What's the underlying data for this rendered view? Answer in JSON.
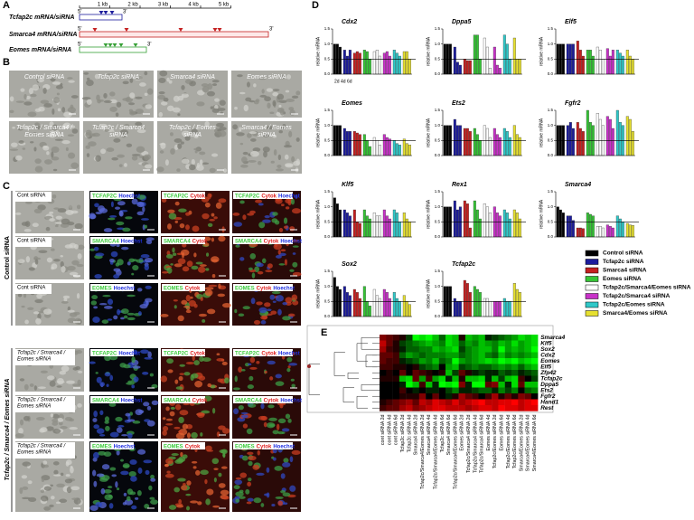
{
  "panel_a": {
    "label": "A",
    "scale": [
      "1 kb",
      "2 kb",
      "3 kb",
      "4 kb",
      "5 kb"
    ],
    "five_prime": "5'",
    "three_prime": "3'",
    "rows": [
      "Tcfap2c mRNA/siRNA",
      "Smarca4 mRNA/siRNA",
      "Eomes mRNA/siRNA"
    ]
  },
  "panel_b": {
    "label": "B",
    "images": [
      [
        "Control siRNA"
      ],
      [
        "Tcfap2c siRNA"
      ],
      [
        "Smarca4 siRNA"
      ],
      [
        "Eomes siRNA"
      ],
      [
        "Tcfap2c / Smarca4 /",
        "Eomes siRNA"
      ],
      [
        "Tcfap2c / Smarca4",
        "siRNA"
      ],
      [
        "Tcfap2c / Eomes",
        "siRNA"
      ],
      [
        "Smarca4 / Eomes",
        "siRNA"
      ]
    ]
  },
  "panel_c": {
    "label": "C",
    "groups": [
      "Control siRNA",
      "Tcfap2c / Smarca4 / Eomes  siRNA"
    ],
    "hoechst": "Hoechst",
    "cytok": "Cytok",
    "rows": [
      {
        "phase": [
          "Cont siRNA"
        ],
        "stain": "TCFAP2C"
      },
      {
        "phase": [
          "Cont siRNA"
        ],
        "stain": "SMARCA4"
      },
      {
        "phase": [
          "Cont siRNA"
        ],
        "stain": "EOMES"
      },
      {
        "phase": [
          "Tcfap2c / Smarca4 /",
          "Eomes siRNA"
        ],
        "stain": "TCFAP2C"
      },
      {
        "phase": [
          "Tcfap2c / Smarca4 /",
          "Eomes siRNA"
        ],
        "stain": "SMARCA4"
      },
      {
        "phase": [
          "Tcfap2c / Smarca4 /",
          "Eomes siRNA"
        ],
        "stain": "EOMES"
      }
    ]
  },
  "panel_d": {
    "label": "D",
    "type": "bar",
    "y_label": "relative mRNA",
    "timepoints": [
      "2d",
      "4d",
      "6d"
    ],
    "ylim": [
      0,
      1.5
    ],
    "yticks": [
      {
        "value": 0,
        "label": "0.0"
      },
      0.5,
      {
        "value": 1,
        "label": "1.0"
      },
      1.5
    ],
    "ref_line": 0.5,
    "series": [
      {
        "name": "Control siRNA",
        "color": "#000000"
      },
      {
        "name": "Tcfap2c siRNA",
        "color": "#1c1c9c"
      },
      {
        "name": "Smarca4 siRNA",
        "color": "#c42020"
      },
      {
        "name": "Eomes siRNA",
        "color": "#36c436"
      },
      {
        "name": "Tcfap2c/Smarca4/Eomes siRNA",
        "color": "#ffffff"
      },
      {
        "name": "Tcfap2c/Smarca4 siRNA",
        "color": "#c832c8"
      },
      {
        "name": "Tcfap2c/Eomes siRNA",
        "color": "#30c8c8"
      },
      {
        "name": "Smarca4/Eomes siRNA",
        "color": "#e6e030"
      }
    ],
    "charts": [
      {
        "title": "Cdx2",
        "values": [
          [
            1,
            1,
            0.9
          ],
          [
            0.8,
            0.6,
            0.8
          ],
          [
            0.7,
            0.75,
            0.7
          ],
          [
            0.8,
            0.75,
            0.5
          ],
          [
            0.75,
            0.8,
            0.6
          ],
          [
            0.7,
            0.75,
            0.6
          ],
          [
            0.8,
            0.7,
            0.6
          ],
          [
            0.75,
            0.75,
            0.5
          ]
        ]
      },
      {
        "title": "Dppa5",
        "values": [
          [
            1,
            1,
            1
          ],
          [
            0.9,
            0.4,
            0.3
          ],
          [
            0.5,
            0.45,
            0.45
          ],
          [
            1.3,
            1.3,
            0.5
          ],
          [
            1.2,
            0.9,
            0.2
          ],
          [
            0.9,
            0.3,
            0.2
          ],
          [
            1.3,
            1.0,
            0.5
          ],
          [
            1.2,
            0.5,
            0.5
          ]
        ]
      },
      {
        "title": "Elf5",
        "values": [
          [
            1,
            1,
            1
          ],
          [
            1,
            1,
            1
          ],
          [
            1.1,
            0.8,
            0.6
          ],
          [
            0.8,
            0.8,
            0.6
          ],
          [
            0.9,
            0.8,
            0.5
          ],
          [
            0.85,
            0.6,
            0.8
          ],
          [
            0.8,
            0.7,
            0.6
          ],
          [
            0.8,
            0.6,
            0.5
          ]
        ]
      },
      {
        "title": "Eomes",
        "values": [
          [
            1,
            1,
            1
          ],
          [
            0.9,
            0.8,
            0.8
          ],
          [
            0.8,
            0.75,
            0.7
          ],
          [
            0.7,
            0.5,
            0.3
          ],
          [
            0.6,
            0.5,
            0.35
          ],
          [
            0.7,
            0.6,
            0.55
          ],
          [
            0.5,
            0.4,
            0.35
          ],
          [
            0.55,
            0.4,
            0.35
          ]
        ]
      },
      {
        "title": "Ets2",
        "values": [
          [
            1,
            1,
            1
          ],
          [
            1.2,
            1,
            1
          ],
          [
            0.9,
            0.9,
            0.8
          ],
          [
            0.9,
            0.7,
            0.5
          ],
          [
            1,
            0.9,
            0.6
          ],
          [
            0.9,
            0.7,
            0.6
          ],
          [
            0.9,
            0.8,
            0.6
          ],
          [
            1,
            0.7,
            0.6
          ]
        ]
      },
      {
        "title": "Fgfr2",
        "values": [
          [
            1,
            1,
            1
          ],
          [
            1,
            1.1,
            0.9
          ],
          [
            1.1,
            0.9,
            0.8
          ],
          [
            1.5,
            1.1,
            1.0
          ],
          [
            1.4,
            1.2,
            1
          ],
          [
            1.3,
            1.2,
            0.9
          ],
          [
            1.5,
            1.1,
            1
          ],
          [
            1.3,
            1.2,
            0.8
          ]
        ]
      },
      {
        "title": "Klf5",
        "values": [
          [
            1.3,
            1.1,
            0.9
          ],
          [
            0.9,
            0.8,
            0.7
          ],
          [
            0.9,
            0.5,
            0.45
          ],
          [
            0.9,
            0.7,
            0.6
          ],
          [
            0.8,
            0.7,
            0.7
          ],
          [
            0.9,
            0.7,
            0.6
          ],
          [
            0.9,
            0.8,
            0.5
          ],
          [
            0.8,
            0.6,
            0.5
          ]
        ]
      },
      {
        "title": "Rex1",
        "values": [
          [
            1,
            1,
            1
          ],
          [
            1.2,
            0.9,
            1.0
          ],
          [
            1.2,
            1.1,
            0.3
          ],
          [
            1.2,
            0.9,
            0.6
          ],
          [
            1.1,
            1.0,
            0.8
          ],
          [
            1.0,
            0.8,
            0.7
          ],
          [
            0.9,
            0.8,
            0.6
          ],
          [
            0.9,
            0.8,
            0.6
          ]
        ]
      },
      {
        "title": "Smarca4",
        "values": [
          [
            1,
            0.9,
            0.8
          ],
          [
            0.7,
            0.7,
            0.55
          ],
          [
            0.3,
            0.3,
            0.28
          ],
          [
            0.8,
            0.75,
            0.7
          ],
          [
            0.35,
            0.35,
            0.3
          ],
          [
            0.4,
            0.35,
            0.3
          ],
          [
            0.7,
            0.6,
            0.5
          ],
          [
            0.45,
            0.4,
            0.38
          ]
        ]
      },
      {
        "title": "Sox2",
        "values": [
          [
            1.3,
            1,
            0.9
          ],
          [
            1,
            0.8,
            0.7
          ],
          [
            0.9,
            0.8,
            0.6
          ],
          [
            1,
            0.5,
            0.35
          ],
          [
            0.9,
            0.7,
            0.6
          ],
          [
            0.9,
            0.8,
            0.6
          ],
          [
            0.8,
            0.6,
            0.5
          ],
          [
            0.7,
            0.5,
            0.4
          ]
        ]
      },
      {
        "title": "Tcfap2c",
        "values": [
          [
            1,
            1,
            1
          ],
          [
            0.6,
            0.5,
            0.5
          ],
          [
            1.2,
            1.1,
            0.8
          ],
          [
            1,
            0.9,
            0.8
          ],
          [
            0.6,
            0.6,
            0.5
          ],
          [
            0.5,
            0.5,
            0.5
          ],
          [
            0.6,
            0.5,
            0.5
          ],
          [
            1.1,
            0.9,
            0.8
          ]
        ]
      }
    ]
  },
  "panel_e": {
    "label": "E",
    "type": "heatmap",
    "low_color": "#00ff00",
    "high_color": "#ff0000",
    "columns": [
      "cont siRNA 2d",
      "cont siRNA 4d",
      "cont siRNA 6d",
      "Tcfap2c siRNA 2d",
      "Tcfap2c siRNA 4d",
      "Smarca4 siRNA 2d",
      "Tcfap2c/Smarca4/Eomes siRNA 2d",
      "Smarca4 siRNA 4d",
      "Tcfap2c/Smarca4/Eomes siRNA 4d",
      "Tcfap2c siRNA 6d",
      "Smarca4 siRNA 6d",
      "Tcfap2c/Smarca4/Eomes siRNA 6d",
      "Eomes siRNA 2d",
      "Tcfap2c/Smarca4 siRNA 2d",
      "Tcfap2c/Smarca4 siRNA 4d",
      "Tcfap2c/Smarca4 siRNA 6d",
      "Eomes siRNA 4d",
      "Tcfap2c/Eomes siRNA 2d",
      "Eomes siRNA 6d",
      "Tcfap2c/Eomes siRNA 4d",
      "Tcfap2c/Eomes siRNA 6d",
      "Smarca4/Eomes siRNA 2d",
      "Smarca4/Eomes siRNA 4d",
      "Smarca4/Eomes siRNA 6d"
    ],
    "rows": [
      {
        "gene": "Smarca4",
        "values": [
          0.4,
          0.3,
          0.2,
          0.1,
          -0.2,
          -0.8,
          -0.7,
          -0.8,
          -0.6,
          -0.3,
          -0.7,
          -0.6,
          0.1,
          -0.6,
          -0.5,
          -0.6,
          -0.1,
          -0.2,
          -0.3,
          -0.4,
          -0.5,
          -0.7,
          -0.6,
          -0.7
        ]
      },
      {
        "gene": "Klf5",
        "values": [
          0.6,
          0.3,
          0.1,
          -0.2,
          -0.3,
          -0.4,
          -0.5,
          -0.6,
          -0.5,
          -0.4,
          -0.7,
          -0.6,
          -0.3,
          -0.5,
          -0.4,
          -0.6,
          -0.5,
          -0.4,
          -0.6,
          -0.5,
          -0.7,
          -0.5,
          -0.6,
          -0.7
        ]
      },
      {
        "gene": "Sox2",
        "values": [
          0.5,
          0.2,
          0.1,
          -0.1,
          -0.3,
          -0.3,
          -0.4,
          -0.4,
          -0.6,
          -0.5,
          -0.6,
          -0.7,
          -0.2,
          -0.4,
          -0.5,
          -0.6,
          -0.6,
          -0.4,
          -0.8,
          -0.5,
          -0.6,
          -0.5,
          -0.6,
          -0.8
        ]
      },
      {
        "gene": "Cdx2",
        "values": [
          0.3,
          0.3,
          0.2,
          -0.3,
          -0.5,
          -0.4,
          -0.3,
          -0.4,
          -0.4,
          -0.4,
          -0.5,
          -0.5,
          -0.3,
          -0.4,
          -0.5,
          -0.6,
          -0.4,
          -0.3,
          -0.6,
          -0.4,
          -0.5,
          -0.4,
          -0.5,
          -0.6
        ]
      },
      {
        "gene": "Eomes",
        "values": [
          0.3,
          0.2,
          0.2,
          -0.1,
          -0.2,
          -0.3,
          -0.5,
          -0.4,
          -0.6,
          -0.3,
          -0.4,
          -0.8,
          -0.5,
          -0.4,
          -0.5,
          -0.6,
          -0.7,
          -0.6,
          -0.8,
          -0.7,
          -0.8,
          -0.6,
          -0.7,
          -0.8
        ]
      },
      {
        "gene": "Elf5",
        "values": [
          0.2,
          0.2,
          0.1,
          0.1,
          0.0,
          0.1,
          -0.2,
          -0.3,
          -0.4,
          0.0,
          -0.5,
          -0.6,
          -0.2,
          -0.3,
          -0.4,
          -0.3,
          -0.3,
          -0.4,
          -0.5,
          -0.4,
          -0.5,
          -0.3,
          -0.5,
          -0.6
        ]
      },
      {
        "gene": "Zfp42",
        "values": [
          0.0,
          0.1,
          0.0,
          0.3,
          0.0,
          0.3,
          0.2,
          0.1,
          0.0,
          0.1,
          -0.6,
          -0.2,
          0.3,
          0.1,
          -0.1,
          -0.2,
          -0.1,
          -0.1,
          -0.3,
          -0.2,
          -0.3,
          -0.1,
          -0.2,
          -0.3
        ]
      },
      {
        "gene": "Tcfap2c",
        "values": [
          0.1,
          0.1,
          0.1,
          -0.6,
          -0.7,
          0.3,
          -0.5,
          0.2,
          -0.5,
          -0.7,
          -0.1,
          -0.6,
          0.1,
          -0.6,
          -0.6,
          -0.7,
          -0.1,
          -0.6,
          -0.2,
          -0.6,
          -0.7,
          0.2,
          0.0,
          -0.2
        ]
      },
      {
        "gene": "Dppa5",
        "values": [
          0.0,
          0.0,
          0.0,
          -0.1,
          -0.8,
          -0.6,
          0.2,
          -0.6,
          -0.1,
          -0.8,
          -0.7,
          -0.9,
          0.4,
          -0.1,
          -0.8,
          -0.9,
          0.3,
          0.4,
          -0.6,
          -0.1,
          -0.7,
          0.3,
          -0.6,
          -0.6
        ]
      },
      {
        "gene": "Ets2",
        "values": [
          0.0,
          0.0,
          0.0,
          0.2,
          0.0,
          -0.1,
          0.0,
          -0.1,
          -0.1,
          0.0,
          -0.2,
          -0.4,
          -0.1,
          -0.1,
          -0.2,
          -0.3,
          -0.3,
          -0.1,
          -0.4,
          -0.2,
          -0.4,
          0.0,
          -0.3,
          -0.4
        ]
      },
      {
        "gene": "Fgfr2",
        "values": [
          0.0,
          0.0,
          0.0,
          0.1,
          0.1,
          0.1,
          0.4,
          0.0,
          0.3,
          0.0,
          -0.1,
          0.1,
          0.5,
          0.3,
          0.2,
          0.0,
          0.2,
          0.5,
          0.1,
          0.3,
          0.1,
          0.4,
          0.3,
          0.0
        ]
      },
      {
        "gene": "Hand1",
        "values": [
          0.1,
          0.2,
          0.3,
          0.4,
          0.5,
          0.3,
          0.6,
          0.5,
          0.7,
          0.6,
          0.5,
          0.7,
          0.5,
          0.6,
          0.7,
          0.8,
          0.6,
          0.6,
          0.7,
          0.7,
          0.8,
          0.6,
          0.7,
          0.8
        ]
      },
      {
        "gene": "Rest",
        "values": [
          0.2,
          0.3,
          0.3,
          0.5,
          0.6,
          0.4,
          0.5,
          0.6,
          0.7,
          0.7,
          0.6,
          0.6,
          0.6,
          0.5,
          0.6,
          0.7,
          0.7,
          0.6,
          0.8,
          0.7,
          0.7,
          0.6,
          0.7,
          0.7
        ]
      }
    ]
  }
}
